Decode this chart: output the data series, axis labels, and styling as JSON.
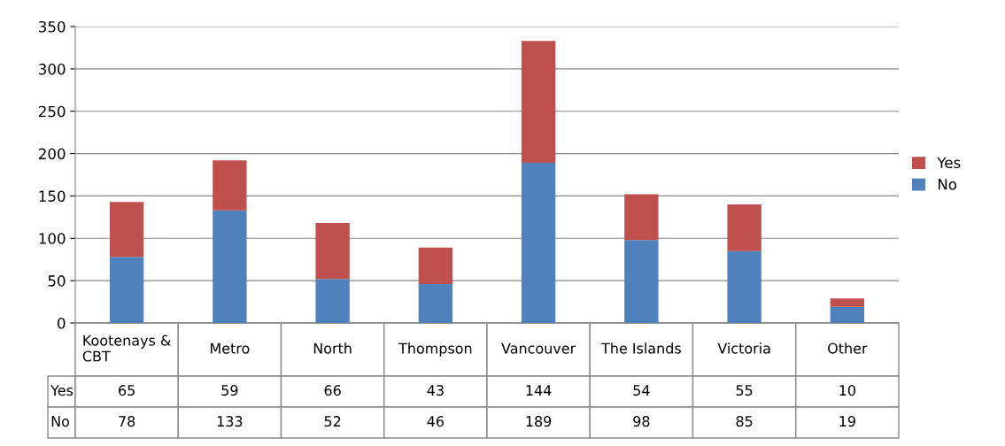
{
  "chart_data": {
    "type": "bar",
    "stacked": true,
    "categories": [
      "Kootenays & CBT",
      "Metro",
      "North",
      "Thompson",
      "Vancouver",
      "The Islands",
      "Victoria",
      "Other"
    ],
    "series": [
      {
        "name": "No",
        "color": "#4f81bd",
        "values": [
          78,
          133,
          52,
          46,
          189,
          98,
          85,
          19
        ]
      },
      {
        "name": "Yes",
        "color": "#c0504d",
        "values": [
          65,
          59,
          66,
          43,
          144,
          54,
          55,
          10
        ]
      }
    ],
    "ylim": [
      0,
      350
    ],
    "yticks": [
      0,
      50,
      100,
      150,
      200,
      250,
      300,
      350
    ],
    "grid": "y",
    "legend": "right",
    "data_labels": true
  }
}
